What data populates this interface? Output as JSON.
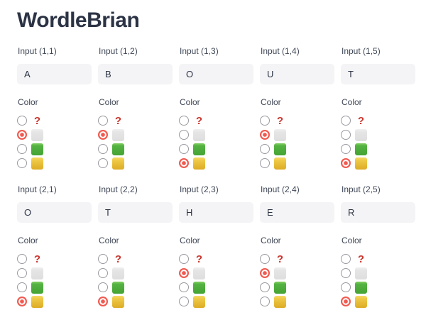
{
  "title": "WordleBrian",
  "colors": {
    "question_mark_red": "#c9342b",
    "selected_radio_red": "#f15a50",
    "gray_square": "#e3e3e3",
    "green_square": "#4fae3e",
    "yellow_square": "#ecc43c",
    "input_background": "#f4f4f6",
    "title_text": "#2b3344"
  },
  "color_options": [
    {
      "id": "unknown",
      "glyph": "?"
    },
    {
      "id": "gray"
    },
    {
      "id": "green"
    },
    {
      "id": "yellow"
    }
  ],
  "cells": [
    {
      "id": "1-1",
      "label": "Input (1,1)",
      "value": "A",
      "color_label": "Color",
      "selected": "gray"
    },
    {
      "id": "1-2",
      "label": "Input (1,2)",
      "value": "B",
      "color_label": "Color",
      "selected": "gray"
    },
    {
      "id": "1-3",
      "label": "Input (1,3)",
      "value": "O",
      "color_label": "Color",
      "selected": "yellow"
    },
    {
      "id": "1-4",
      "label": "Input (1,4)",
      "value": "U",
      "color_label": "Color",
      "selected": "gray"
    },
    {
      "id": "1-5",
      "label": "Input (1,5)",
      "value": "T",
      "color_label": "Color",
      "selected": "yellow"
    },
    {
      "id": "2-1",
      "label": "Input (2,1)",
      "value": "O",
      "color_label": "Color",
      "selected": "yellow"
    },
    {
      "id": "2-2",
      "label": "Input (2,2)",
      "value": "T",
      "color_label": "Color",
      "selected": "yellow"
    },
    {
      "id": "2-3",
      "label": "Input (2,3)",
      "value": "H",
      "color_label": "Color",
      "selected": "gray"
    },
    {
      "id": "2-4",
      "label": "Input (2,4)",
      "value": "E",
      "color_label": "Color",
      "selected": "gray"
    },
    {
      "id": "2-5",
      "label": "Input (2,5)",
      "value": "R",
      "color_label": "Color",
      "selected": "yellow"
    }
  ]
}
